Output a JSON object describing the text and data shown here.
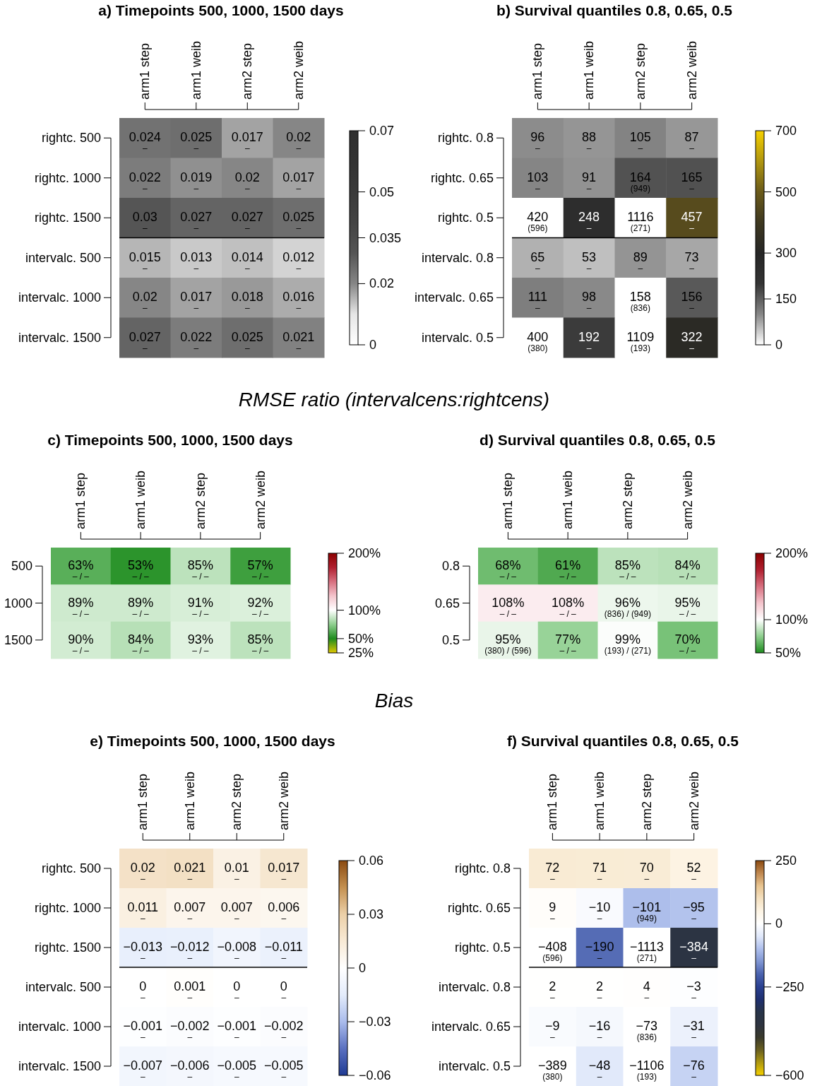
{
  "chart_data": [
    {
      "type": "heatmap",
      "title": "a) Timepoints 500, 1000, 1500 days",
      "categories": [
        "arm1 step",
        "arm1 weib",
        "arm2 step",
        "arm2 weib"
      ],
      "y_categories": [
        "rightc. 500",
        "rightc. 1000",
        "rightc. 1500",
        "intervalc. 500",
        "intervalc. 1000",
        "intervalc. 1500"
      ],
      "cells": [
        [
          0.024,
          0.025,
          0.017,
          0.02
        ],
        [
          0.022,
          0.019,
          0.02,
          0.017
        ],
        [
          0.03,
          0.027,
          0.027,
          0.025
        ],
        [
          0.015,
          0.013,
          0.014,
          0.012
        ],
        [
          0.02,
          0.017,
          0.018,
          0.016
        ],
        [
          0.027,
          0.022,
          0.025,
          0.021
        ]
      ],
      "cell_labels": [
        [
          "0.024\n–",
          "0.025\n–",
          "0.017\n–",
          "0.02\n–"
        ],
        [
          "0.022\n–",
          "0.019\n–",
          "0.02\n–",
          "0.017\n–"
        ],
        [
          "0.03\n–",
          "0.027\n–",
          "0.027\n–",
          "0.025\n–"
        ],
        [
          "0.015\n–",
          "0.013\n–",
          "0.014\n–",
          "0.012\n–"
        ],
        [
          "0.02\n–",
          "0.017\n–",
          "0.018\n–",
          "0.016\n–"
        ],
        [
          "0.027\n–",
          "0.022\n–",
          "0.025\n–",
          "0.021\n–"
        ]
      ],
      "clim": [
        0,
        0.07
      ],
      "cticks": [
        0,
        0.02,
        0.035,
        0.05,
        0.07
      ],
      "colors": [
        "#ffffff",
        "#e6e6e6",
        "#868686",
        "#555555",
        "#444444",
        "#3a3a3a",
        "#333333",
        "#2e2e2e"
      ]
    },
    {
      "type": "heatmap",
      "title": "b) Survival quantiles 0.8, 0.65, 0.5",
      "categories": [
        "arm1 step",
        "arm1 weib",
        "arm2 step",
        "arm2 weib"
      ],
      "y_categories": [
        "rightc. 0.8",
        "rightc. 0.65",
        "rightc. 0.5",
        "intervalc. 0.8",
        "intervalc. 0.65",
        "intervalc. 0.5"
      ],
      "cells": [
        [
          96,
          88,
          105,
          87
        ],
        [
          103,
          91,
          164,
          165
        ],
        [
          null,
          248,
          null,
          457
        ],
        [
          65,
          53,
          89,
          73
        ],
        [
          111,
          98,
          null,
          156
        ],
        [
          null,
          192,
          null,
          322
        ]
      ],
      "cell_labels": [
        [
          "96\n–",
          "88\n–",
          "105\n–",
          "87\n–"
        ],
        [
          "103\n–",
          "91\n–",
          "164\n(949)",
          "165\n–"
        ],
        [
          "420\n(596)",
          "248\n–",
          "1116\n(271)",
          "457\n–"
        ],
        [
          "65\n–",
          "53\n–",
          "89\n–",
          "73\n–"
        ],
        [
          "111\n–",
          "98\n–",
          "158\n(836)",
          "156\n–"
        ],
        [
          "400\n(380)",
          "192\n–",
          "1109\n(193)",
          "322\n–"
        ]
      ],
      "clim": [
        0,
        700
      ],
      "cticks": [
        0,
        150,
        300,
        500,
        700
      ],
      "colors": [
        "#ffffff",
        "#878787",
        "#343434",
        "#262626",
        "#3e3820",
        "#6a5a1a",
        "#b09610",
        "#f5d000"
      ]
    },
    {
      "type": "other",
      "title": "RMSE ratio (intervalcens:rightcens)"
    },
    {
      "type": "heatmap",
      "title": "c) Timepoints 500, 1000, 1500 days",
      "categories": [
        "arm1 step",
        "arm1 weib",
        "arm2 step",
        "arm2 weib"
      ],
      "y_categories": [
        "500",
        "1000",
        "1500"
      ],
      "cells": [
        [
          63,
          53,
          85,
          57
        ],
        [
          89,
          89,
          91,
          92
        ],
        [
          90,
          84,
          93,
          85
        ]
      ],
      "cell_labels": [
        [
          "63%\n– / –",
          "53%\n– / –",
          "85%\n– / –",
          "57%\n– / –"
        ],
        [
          "89%\n– / –",
          "89%\n– / –",
          "91%\n– / –",
          "92%\n– / –"
        ],
        [
          "90%\n– / –",
          "84%\n– / –",
          "93%\n– / –",
          "85%\n– / –"
        ]
      ],
      "clim": [
        25,
        200
      ],
      "cticks": [
        {
          "value": 25,
          "label": "25%"
        },
        {
          "value": 50,
          "label": "50%"
        },
        {
          "value": 100,
          "label": "100%"
        },
        {
          "value": 200,
          "label": "200%"
        }
      ],
      "colors": [
        "#e0c800",
        "#1e8c1e",
        "#8fcf8f",
        "#ffffff",
        "#f4c4cc",
        "#d87080",
        "#b02030",
        "#8b0000"
      ]
    },
    {
      "type": "heatmap",
      "title": "d) Survival quantiles 0.8, 0.65, 0.5",
      "categories": [
        "arm1 step",
        "arm1 weib",
        "arm2 step",
        "arm2 weib"
      ],
      "y_categories": [
        "0.8",
        "0.65",
        "0.5"
      ],
      "cells": [
        [
          68,
          61,
          85,
          84
        ],
        [
          108,
          108,
          96,
          95
        ],
        [
          95,
          77,
          99,
          70
        ]
      ],
      "cell_labels": [
        [
          "68%\n– / –",
          "61%\n– / –",
          "85%\n– / –",
          "84%\n– / –"
        ],
        [
          "108%\n– / –",
          "108%\n– / –",
          "96%\n(836) / (949)",
          "95%\n– / –"
        ],
        [
          "95%\n(380) / (596)",
          "77%\n– / –",
          "99%\n(193) / (271)",
          "70%\n– / –"
        ]
      ],
      "clim": [
        50,
        200
      ],
      "cticks": [
        {
          "value": 50,
          "label": "50%"
        },
        {
          "value": 100,
          "label": "100%"
        },
        {
          "value": 200,
          "label": "200%"
        }
      ],
      "colors": [
        "#1e8c1e",
        "#8fcf8f",
        "#ffffff",
        "#f4c4cc",
        "#d87080",
        "#b02030",
        "#8b0000"
      ]
    },
    {
      "type": "other",
      "title": "Bias"
    },
    {
      "type": "heatmap",
      "title": "e) Timepoints 500, 1000, 1500 days",
      "categories": [
        "arm1 step",
        "arm1 weib",
        "arm2 step",
        "arm2 weib"
      ],
      "y_categories": [
        "rightc. 500",
        "rightc. 1000",
        "rightc. 1500",
        "intervalc. 500",
        "intervalc. 1000",
        "intervalc. 1500"
      ],
      "cells": [
        [
          0.02,
          0.021,
          0.01,
          0.017
        ],
        [
          0.011,
          0.007,
          0.007,
          0.006
        ],
        [
          -0.013,
          -0.012,
          -0.008,
          -0.011
        ],
        [
          0,
          0.001,
          0,
          0
        ],
        [
          -0.001,
          -0.002,
          -0.001,
          -0.002
        ],
        [
          -0.007,
          -0.006,
          -0.005,
          -0.005
        ]
      ],
      "cell_labels": [
        [
          "0.02\n–",
          "0.021\n–",
          "0.01\n–",
          "0.017\n–"
        ],
        [
          "0.011\n–",
          "0.007\n–",
          "0.007\n–",
          "0.006\n–"
        ],
        [
          "−0.013\n–",
          "−0.012\n–",
          "−0.008\n–",
          "−0.011\n–"
        ],
        [
          "0\n–",
          "0.001\n–",
          "0\n–",
          "0\n–"
        ],
        [
          "−0.001\n–",
          "−0.002\n–",
          "−0.001\n–",
          "−0.002\n–"
        ],
        [
          "−0.007\n–",
          "−0.006\n–",
          "−0.005\n–",
          "−0.005\n–"
        ]
      ],
      "clim": [
        -0.06,
        0.06
      ],
      "cticks": [
        {
          "value": -0.06,
          "label": "−0.06"
        },
        {
          "value": -0.03,
          "label": "−0.03"
        },
        0,
        0.03,
        0.06
      ],
      "colors": [
        "#1f3a93",
        "#5a70c0",
        "#aabcec",
        "#e4ecfb",
        "#ffffff",
        "#f8ead6",
        "#ecd0a8",
        "#c49050",
        "#8b4a10"
      ]
    },
    {
      "type": "heatmap",
      "title": "f) Survival quantiles 0.8, 0.65, 0.5",
      "categories": [
        "arm1 step",
        "arm1 weib",
        "arm2 step",
        "arm2 weib"
      ],
      "y_categories": [
        "rightc. 0.8",
        "rightc. 0.65",
        "rightc. 0.5",
        "intervalc. 0.8",
        "intervalc. 0.65",
        "intervalc. 0.5"
      ],
      "cells": [
        [
          72,
          71,
          70,
          52
        ],
        [
          9,
          -10,
          -101,
          -95
        ],
        [
          null,
          -190,
          null,
          -384
        ],
        [
          2,
          2,
          4,
          -3
        ],
        [
          -9,
          -16,
          null,
          -31
        ],
        [
          null,
          -48,
          null,
          -76
        ]
      ],
      "cell_labels": [
        [
          "72\n–",
          "71\n–",
          "70\n–",
          "52\n–"
        ],
        [
          "9\n–",
          "−10\n–",
          "−101\n(949)",
          "−95\n–"
        ],
        [
          "−408\n(596)",
          "−190\n–",
          "−1113\n(271)",
          "−384\n–"
        ],
        [
          "2\n–",
          "2\n–",
          "4\n–",
          "−3\n–"
        ],
        [
          "−9\n–",
          "−16\n–",
          "−73\n(836)",
          "−31\n–"
        ],
        [
          "−389\n(380)",
          "−48\n–",
          "−1106\n(193)",
          "−76\n–"
        ]
      ],
      "clim": [
        -600,
        250
      ],
      "cticks": [
        {
          "value": -600,
          "label": "−600"
        },
        {
          "value": -250,
          "label": "−250"
        },
        0,
        250
      ],
      "colors": [
        "#f5d000",
        "#b09a10",
        "#6a6020",
        "#3a3a2c",
        "#2e3440",
        "#283448",
        "#1f3070",
        "#2a4090",
        "#4a62ae",
        "#7f95d2",
        "#aebfec",
        "#e0e8fa",
        "#ffffff",
        "#fdf4e4",
        "#f4e0c0",
        "#e8c490",
        "#c08850",
        "#8b4a10"
      ]
    }
  ]
}
